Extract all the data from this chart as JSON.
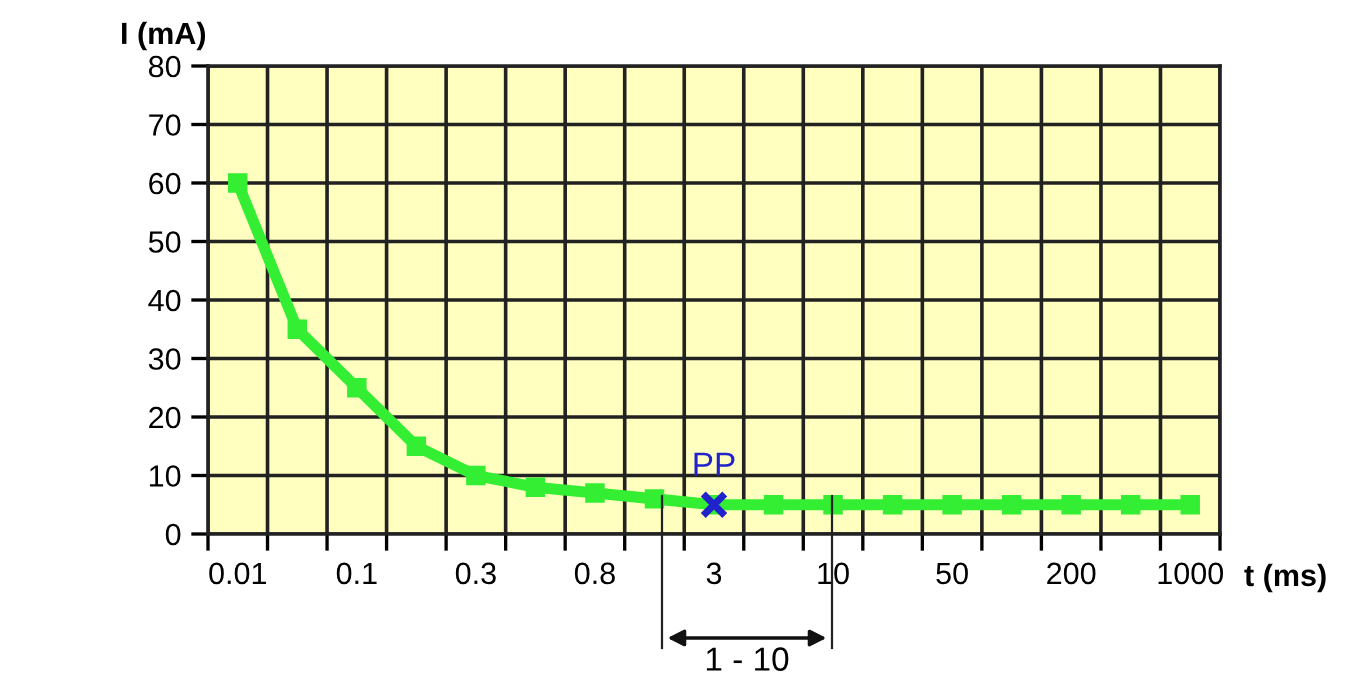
{
  "chart_data": {
    "type": "line",
    "xlabel": "t (ms)",
    "ylabel": "I (mA)",
    "categories": [
      "0.01",
      null,
      "0.1",
      null,
      "0.3",
      null,
      "0.8",
      null,
      "3",
      null,
      "10",
      null,
      "50",
      null,
      "200",
      null,
      "1000"
    ],
    "series": [
      {
        "color": "#33ee33",
        "marker": "square",
        "values": [
          60,
          35,
          25,
          15,
          10,
          8,
          7,
          6,
          5,
          5,
          5,
          5,
          5,
          5,
          5,
          5,
          5
        ]
      },
      {
        "type": "scatter",
        "name": "PP",
        "color": "#2222cc",
        "marker": "cross",
        "x": [
          "3"
        ],
        "values": [
          5
        ]
      }
    ],
    "ylim": [
      0,
      80
    ],
    "yticks": [
      0,
      10,
      20,
      30,
      40,
      50,
      60,
      70,
      80
    ],
    "grid": true,
    "annotations": [
      "1 - 10"
    ]
  }
}
